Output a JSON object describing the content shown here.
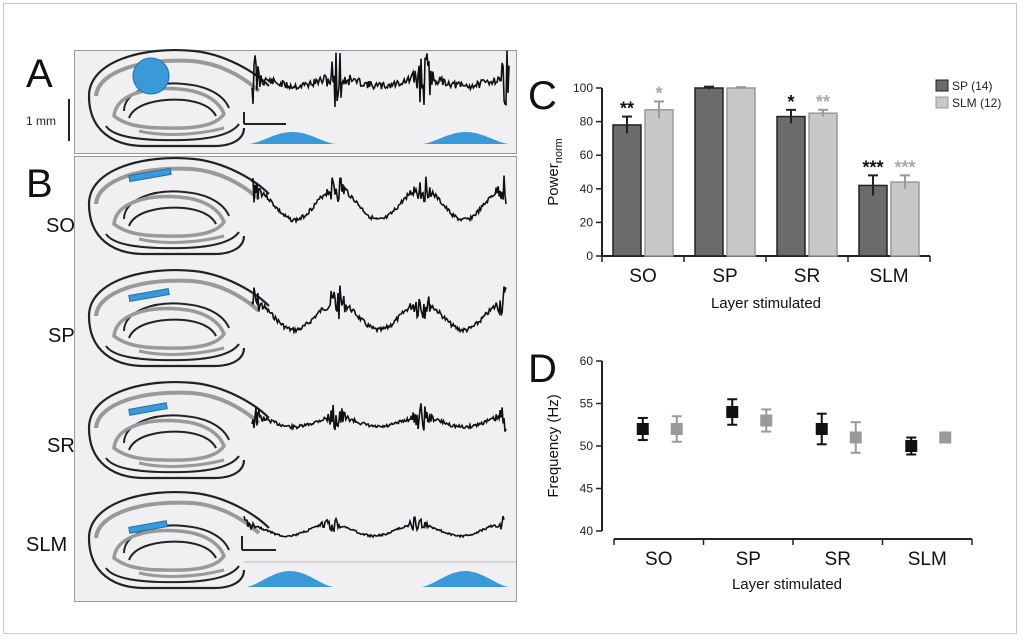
{
  "panel_letters": {
    "a": "A",
    "b": "B",
    "c": "C",
    "d": "D"
  },
  "scale_bar_label": "1 mm",
  "row_labels": [
    "SO",
    "SP",
    "SR",
    "SLM"
  ],
  "colors": {
    "sp": "#6b6b6b",
    "slm": "#c8c8c8",
    "sp_marker": "#111111",
    "slm_marker": "#9a9a9a",
    "light": "#3a9ad9",
    "panel_bg": "#f0f0f2"
  },
  "chart_data": [
    {
      "type": "bar",
      "panel": "C",
      "categories": [
        "SO",
        "SP",
        "SR",
        "SLM"
      ],
      "xlabel": "Layer stimulated",
      "ylabel": "Power",
      "ylabel_sub": "norm",
      "ylim": [
        0,
        100
      ],
      "yticks": [
        0,
        20,
        40,
        60,
        80,
        100
      ],
      "legend_position": "top-right",
      "series": [
        {
          "name": "SP (14)",
          "values": [
            78,
            100,
            83,
            42
          ],
          "errors": [
            5,
            0.8,
            4,
            6
          ],
          "significance": [
            "**",
            "",
            "*",
            "***"
          ]
        },
        {
          "name": "SLM (12)",
          "values": [
            87,
            100,
            85,
            44
          ],
          "errors": [
            5,
            0.5,
            2,
            4
          ],
          "significance": [
            "*",
            "",
            "**",
            "***"
          ]
        }
      ]
    },
    {
      "type": "scatter",
      "panel": "D",
      "categories": [
        "SO",
        "SP",
        "SR",
        "SLM"
      ],
      "xlabel": "Layer stimulated",
      "ylabel": "Frequency (Hz)",
      "ylim": [
        40,
        60
      ],
      "yticks": [
        40,
        45,
        50,
        55,
        60
      ],
      "series": [
        {
          "name": "SP (14)",
          "values": [
            52,
            54,
            52,
            50
          ],
          "errors": [
            1.3,
            1.5,
            1.8,
            1.0
          ]
        },
        {
          "name": "SLM (12)",
          "values": [
            52,
            53,
            51,
            51
          ],
          "errors": [
            1.5,
            1.3,
            1.8,
            0.5
          ]
        }
      ]
    }
  ]
}
